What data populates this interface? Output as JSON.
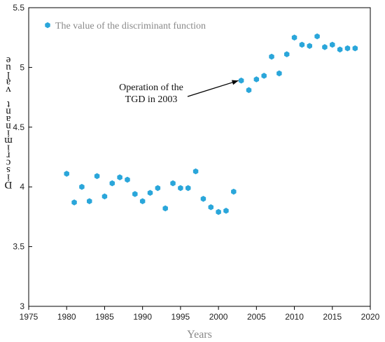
{
  "chart_data": {
    "type": "scatter",
    "xlabel": "Years",
    "ylabel": "Discriminant value",
    "xlim": [
      1975,
      2020
    ],
    "ylim": [
      3,
      5.5
    ],
    "x_ticks": [
      1975,
      1980,
      1985,
      1990,
      1995,
      2000,
      2005,
      2010,
      2015,
      2020
    ],
    "y_ticks": [
      3,
      3.5,
      4,
      4.5,
      5,
      5.5
    ],
    "legend": {
      "position": "top-left"
    },
    "grid": false,
    "series": [
      {
        "name": "The value of the discriminant function",
        "color": "#2aa6da",
        "marker": "hexagon",
        "x": [
          1980,
          1981,
          1982,
          1983,
          1984,
          1985,
          1986,
          1987,
          1988,
          1989,
          1990,
          1991,
          1992,
          1993,
          1994,
          1995,
          1996,
          1997,
          1998,
          1999,
          2000,
          2001,
          2002,
          2003,
          2004,
          2005,
          2006,
          2007,
          2008,
          2009,
          2010,
          2011,
          2012,
          2013,
          2014,
          2015,
          2016,
          2017,
          2018
        ],
        "y": [
          4.11,
          3.87,
          4.0,
          3.88,
          4.09,
          3.92,
          4.03,
          4.08,
          4.06,
          3.94,
          3.88,
          3.95,
          3.99,
          3.82,
          4.03,
          3.99,
          3.99,
          4.13,
          3.9,
          3.83,
          3.79,
          3.8,
          3.96,
          4.89,
          4.81,
          4.9,
          4.93,
          5.09,
          4.95,
          5.11,
          5.25,
          5.19,
          5.18,
          5.26,
          5.17,
          5.19,
          5.15,
          5.16,
          5.16
        ]
      }
    ],
    "annotations": [
      {
        "text_line1": "Operation of  the",
        "text_line2": "TGD in 2003",
        "target_x": 2003,
        "target_y": 4.89
      }
    ]
  }
}
